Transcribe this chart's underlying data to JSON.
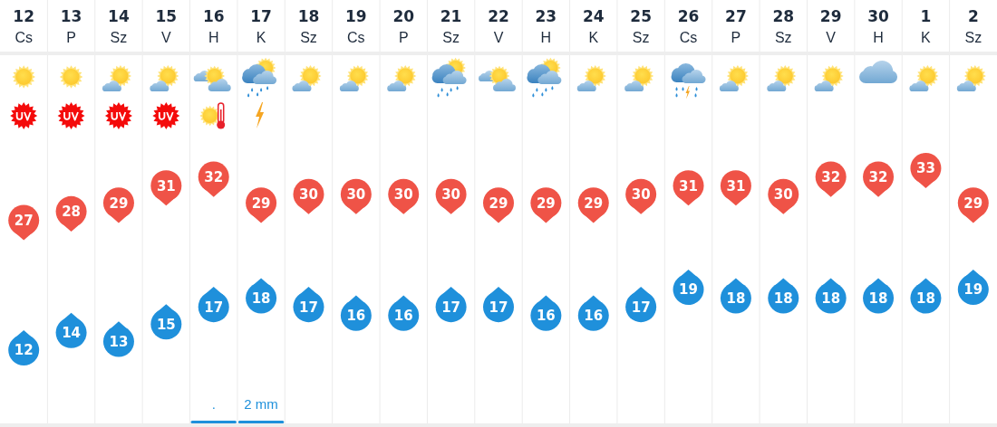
{
  "chart_data": {
    "type": "scatter",
    "categories": [
      "12\nCs",
      "13\nP",
      "14\nSz",
      "15\nV",
      "16\nH",
      "17\nK",
      "18\nSz",
      "19\nCs",
      "20\nP",
      "21\nSz",
      "22\nV",
      "23\nH",
      "24\nK",
      "25\nSz",
      "26\nCs",
      "27\nP",
      "28\nSz",
      "29\nV",
      "30\nH",
      "1\nK",
      "2\nSz"
    ],
    "series": [
      {
        "color": "#ef5347",
        "values": [
          27,
          28,
          29,
          31,
          32,
          29,
          30,
          30,
          30,
          30,
          29,
          29,
          29,
          30,
          31,
          31,
          30,
          32,
          32,
          33,
          29
        ]
      },
      {
        "color": "#1f90db",
        "values": [
          12,
          14,
          13,
          15,
          17,
          18,
          17,
          16,
          16,
          17,
          17,
          16,
          16,
          17,
          19,
          18,
          18,
          18,
          18,
          18,
          19
        ]
      },
      {
        "type": "bar",
        "color": "#1e90db",
        "values": [
          null,
          null,
          null,
          null,
          null,
          null,
          null,
          null,
          null,
          null,
          null,
          null,
          null,
          null,
          null,
          null,
          null,
          null,
          null,
          null,
          null
        ],
        "value_labels": [
          null,
          null,
          null,
          null,
          ".",
          "2 mm",
          null,
          null,
          null,
          null,
          null,
          null,
          null,
          null,
          null,
          null,
          null,
          null,
          null,
          null,
          null
        ]
      }
    ],
    "marker": "circle",
    "data_labels": true,
    "grid": "x",
    "tick_labels": "x"
  }
}
